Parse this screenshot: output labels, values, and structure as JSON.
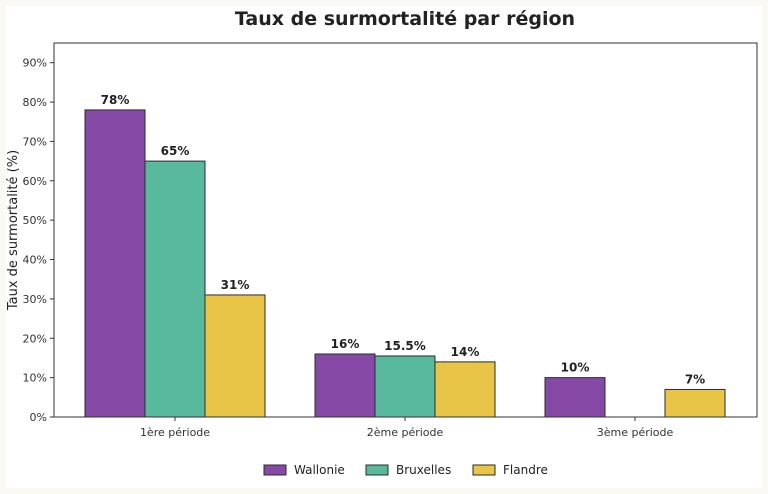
{
  "chart_data": {
    "type": "bar",
    "title": "Taux de surmortalité par région",
    "xlabel": "",
    "ylabel": "Taux de surmortalité (%)",
    "categories": [
      "1ère période",
      "2ème période",
      "3ème période"
    ],
    "series": [
      {
        "name": "Wallonie",
        "color": "#8649a5",
        "values": [
          78,
          16,
          10
        ],
        "labels": [
          "78%",
          "16%",
          "10%"
        ]
      },
      {
        "name": "Bruxelles",
        "color": "#58b99c",
        "values": [
          65,
          15.5,
          0
        ],
        "labels": [
          "65%",
          "15.5%",
          ""
        ]
      },
      {
        "name": "Flandre",
        "color": "#e8c546",
        "values": [
          31,
          14,
          7
        ],
        "labels": [
          "31%",
          "14%",
          "7%"
        ]
      }
    ],
    "ylim": [
      0,
      95
    ],
    "yticks": [
      0,
      10,
      20,
      30,
      40,
      50,
      60,
      70,
      80,
      90
    ],
    "ytick_labels": [
      "0%",
      "10%",
      "20%",
      "30%",
      "40%",
      "50%",
      "60%",
      "70%",
      "80%",
      "90%"
    ],
    "grid": false,
    "legend_position": "bottom-center"
  }
}
